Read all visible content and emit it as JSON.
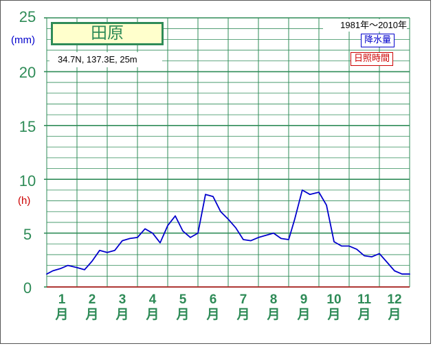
{
  "chart_data": {
    "type": "line",
    "station": "田原",
    "location": "34.7N,  137.3E,  25m",
    "period": "1981年～2010年",
    "legend": [
      {
        "label": "降水量",
        "color": "#0000cc"
      },
      {
        "label": "日照時間",
        "color": "#cc0000"
      }
    ],
    "unit_precip": "(mm)",
    "unit_sunshine": "(h)",
    "y_ticks": [
      "0",
      "5",
      "10",
      "15",
      "20",
      "25"
    ],
    "ylim": [
      0,
      25
    ],
    "grid": true,
    "categories": [
      "1月",
      "2月",
      "3月",
      "4月",
      "5月",
      "6月",
      "7月",
      "8月",
      "9月",
      "10月",
      "11月",
      "12月"
    ],
    "month_labels": [
      {
        "num": "1",
        "suffix": "月"
      },
      {
        "num": "2",
        "suffix": "月"
      },
      {
        "num": "3",
        "suffix": "月"
      },
      {
        "num": "4",
        "suffix": "月"
      },
      {
        "num": "5",
        "suffix": "月"
      },
      {
        "num": "6",
        "suffix": "月"
      },
      {
        "num": "7",
        "suffix": "月"
      },
      {
        "num": "8",
        "suffix": "月"
      },
      {
        "num": "9",
        "suffix": "月"
      },
      {
        "num": "10",
        "suffix": "月"
      },
      {
        "num": "11",
        "suffix": "月"
      },
      {
        "num": "12",
        "suffix": "月"
      }
    ],
    "series": [
      {
        "name": "降水量",
        "color": "#0000cc",
        "x": [
          0.0,
          0.2,
          0.45,
          0.7,
          1.0,
          1.25,
          1.5,
          1.75,
          2.0,
          2.25,
          2.5,
          2.75,
          3.0,
          3.25,
          3.5,
          3.75,
          4.0,
          4.25,
          4.5,
          4.75,
          5.0,
          5.25,
          5.5,
          5.75,
          6.0,
          6.25,
          6.5,
          6.75,
          7.0,
          7.25,
          7.5,
          7.75,
          8.0,
          8.2,
          8.45,
          8.7,
          9.0,
          9.25,
          9.5,
          9.75,
          10.0,
          10.25,
          10.5,
          10.75,
          11.0,
          11.25,
          11.5,
          11.75,
          12.0
        ],
        "values": [
          1.2,
          1.5,
          1.7,
          2.0,
          1.8,
          1.6,
          2.4,
          3.4,
          3.2,
          3.4,
          4.3,
          4.5,
          4.6,
          5.4,
          5.0,
          4.1,
          5.7,
          6.6,
          5.2,
          4.6,
          5.0,
          8.6,
          8.4,
          7.0,
          6.3,
          5.5,
          4.4,
          4.3,
          4.6,
          4.8,
          5.0,
          4.5,
          4.4,
          6.3,
          9.0,
          8.6,
          8.8,
          7.6,
          4.2,
          3.8,
          3.8,
          3.5,
          2.9,
          2.8,
          3.1,
          2.3,
          1.5,
          1.2,
          1.2
        ]
      }
    ]
  }
}
